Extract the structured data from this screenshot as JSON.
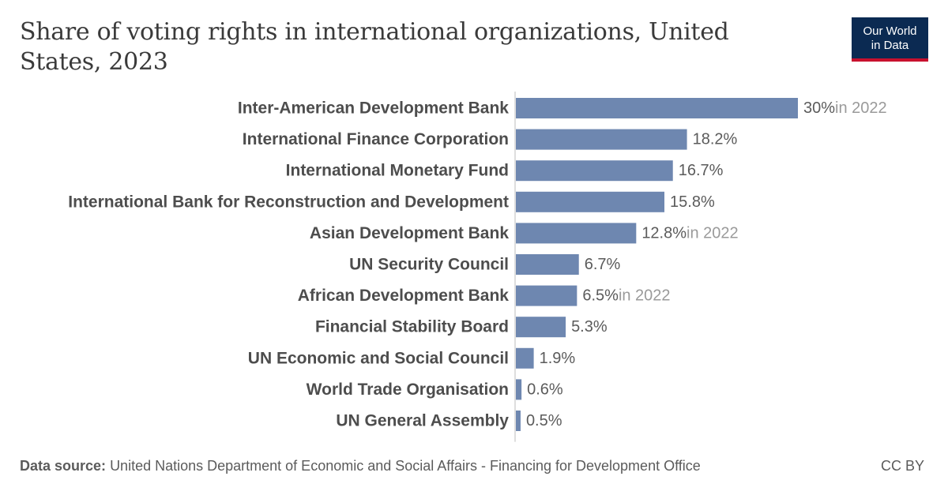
{
  "header": {
    "title": "Share of voting rights in international organizations, United States, 2023"
  },
  "logo": {
    "line1": "Our World",
    "line2": "in Data",
    "bg_color": "#0b2a52",
    "accent_color": "#c8102e"
  },
  "footer": {
    "source_label": "Data source:",
    "source_text": "United Nations Department of Economic and Social Affairs - Financing for Development Office",
    "license": "CC BY"
  },
  "chart_data": {
    "type": "bar",
    "orientation": "horizontal",
    "bar_color": "#6e87b0",
    "categories": [
      "Inter-American Development Bank",
      "International Finance Corporation",
      "International Monetary Fund",
      "International Bank for Reconstruction and Development",
      "Asian Development Bank",
      "UN Security Council",
      "African Development Bank",
      "Financial Stability Board",
      "UN Economic and Social Council",
      "World Trade Organisation",
      "UN General Assembly"
    ],
    "values": [
      30,
      18.2,
      16.7,
      15.8,
      12.8,
      6.7,
      6.5,
      5.3,
      1.9,
      0.6,
      0.5
    ],
    "value_labels": [
      "30%",
      "18.2%",
      "16.7%",
      "15.8%",
      "12.8%",
      "6.7%",
      "6.5%",
      "5.3%",
      "1.9%",
      "0.6%",
      "0.5%"
    ],
    "notes": [
      "in 2022",
      "",
      "",
      "",
      "in 2022",
      "",
      "in 2022",
      "",
      "",
      "",
      ""
    ],
    "xlim": [
      0,
      30
    ]
  }
}
